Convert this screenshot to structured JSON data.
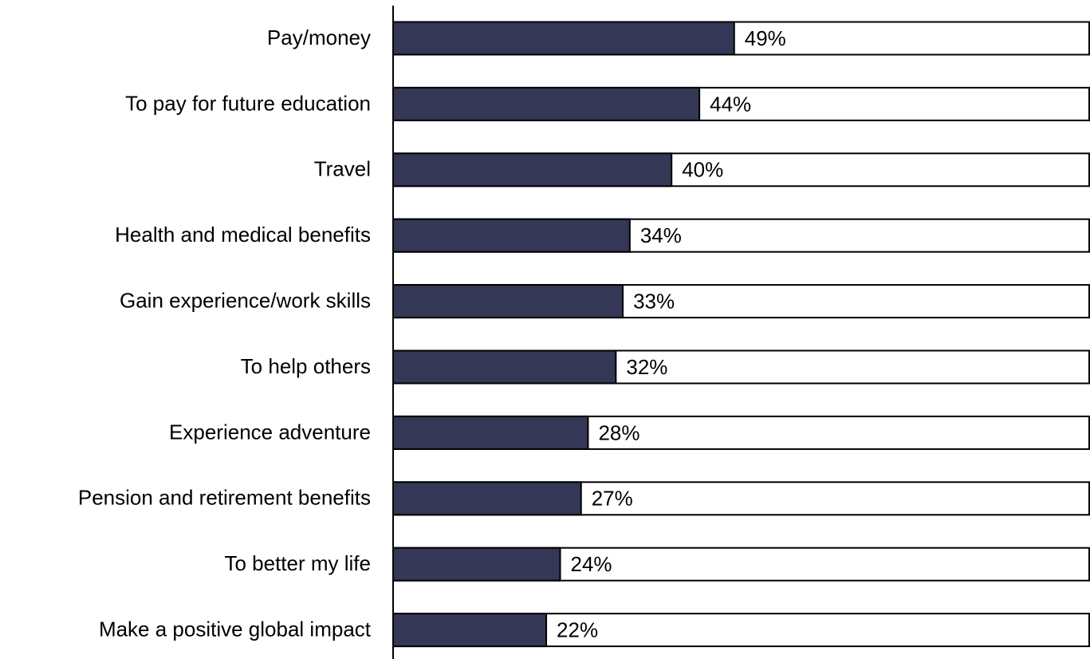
{
  "chart_data": {
    "type": "hbar",
    "categories": [
      "Pay/money",
      "To pay for future education",
      "Travel",
      "Health and medical benefits",
      "Gain experience/work skills",
      "To help others",
      "Experience adventure",
      "Pension and retirement benefits",
      "To better my life",
      "Make a positive global impact"
    ],
    "values": [
      49,
      44,
      40,
      34,
      33,
      32,
      28,
      27,
      24,
      22
    ],
    "value_labels": [
      "49%",
      "44%",
      "40%",
      "34%",
      "33%",
      "32%",
      "28%",
      "27%",
      "24%",
      "22%"
    ],
    "color": "#343755",
    "xlim": [
      0,
      100
    ]
  }
}
